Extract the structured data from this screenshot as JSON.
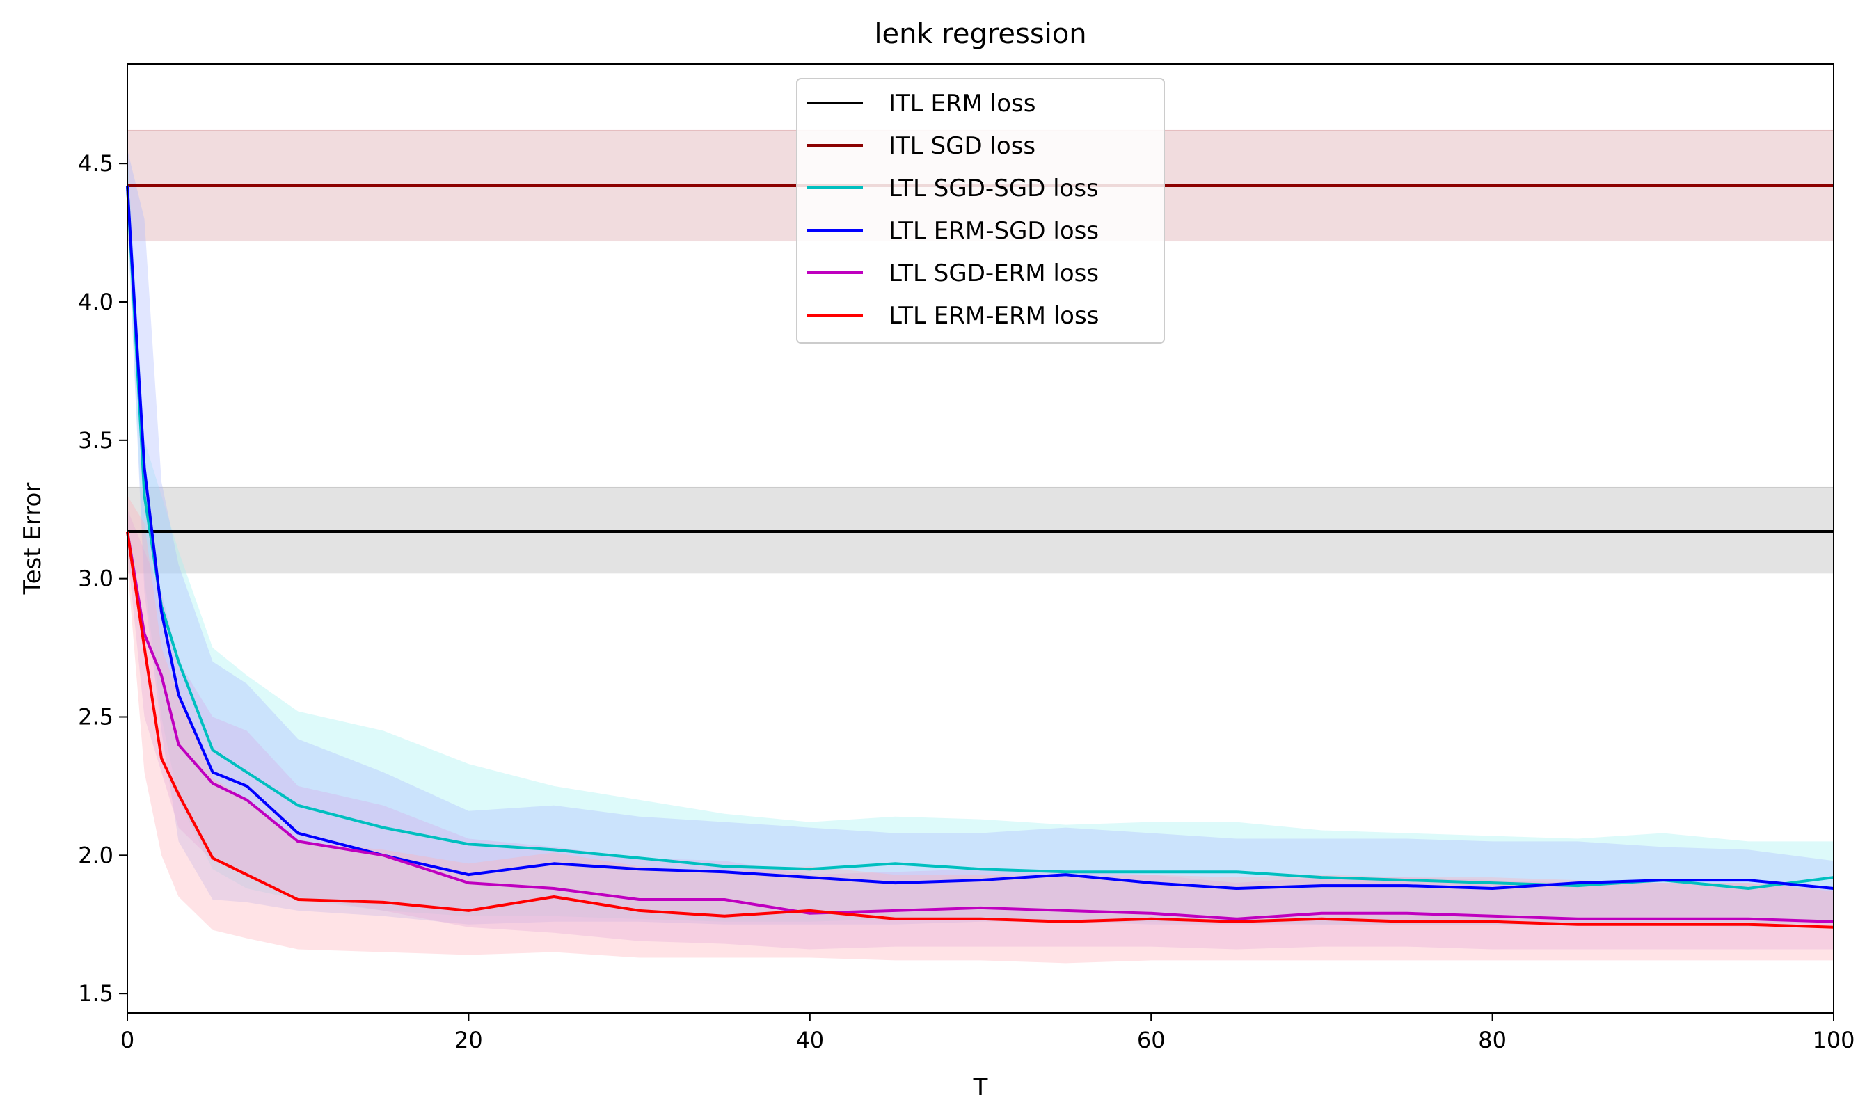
{
  "chart_data": {
    "type": "line",
    "title": "lenk regression",
    "xlabel": "T",
    "ylabel": "Test Error",
    "xlim": [
      0,
      100
    ],
    "ylim": [
      1.43,
      4.86
    ],
    "xticks": [
      0,
      20,
      40,
      60,
      80,
      100
    ],
    "yticks": [
      1.5,
      2.0,
      2.5,
      3.0,
      3.5,
      4.0,
      4.5
    ],
    "grid": false,
    "legend_position": "top-center",
    "horizontal_series": [
      {
        "name": "ITL ERM loss",
        "color": "#000000",
        "value": 3.17,
        "band": [
          3.02,
          3.33
        ],
        "band_color": "#b0b0b0"
      },
      {
        "name": "ITL SGD loss",
        "color": "#8b0000",
        "value": 4.42,
        "band": [
          4.22,
          4.62
        ],
        "band_color": "#d89ca0"
      }
    ],
    "series": [
      {
        "name": "LTL SGD-SGD loss",
        "color": "#00bfbf",
        "band_color": "#9ef0f0",
        "x": [
          0,
          1,
          2,
          3,
          5,
          7,
          10,
          15,
          20,
          25,
          30,
          35,
          40,
          45,
          50,
          55,
          60,
          65,
          70,
          75,
          80,
          85,
          90,
          95,
          100
        ],
        "values": [
          4.42,
          3.3,
          2.9,
          2.7,
          2.38,
          2.3,
          2.18,
          2.1,
          2.04,
          2.02,
          1.99,
          1.96,
          1.95,
          1.97,
          1.95,
          1.94,
          1.94,
          1.94,
          1.92,
          1.91,
          1.9,
          1.89,
          1.91,
          1.88,
          1.92
        ],
        "lower": [
          4.3,
          3.0,
          2.5,
          2.2,
          1.95,
          1.88,
          1.84,
          1.8,
          1.78,
          1.78,
          1.77,
          1.76,
          1.76,
          1.77,
          1.77,
          1.76,
          1.76,
          1.76,
          1.75,
          1.75,
          1.75,
          1.75,
          1.75,
          1.74,
          1.76
        ],
        "upper": [
          4.55,
          3.5,
          3.3,
          3.1,
          2.75,
          2.65,
          2.52,
          2.45,
          2.33,
          2.25,
          2.2,
          2.15,
          2.12,
          2.14,
          2.13,
          2.11,
          2.12,
          2.12,
          2.09,
          2.08,
          2.07,
          2.06,
          2.08,
          2.05,
          2.05
        ]
      },
      {
        "name": "LTL ERM-SGD loss",
        "color": "#0000ff",
        "band_color": "#a8b8ff",
        "x": [
          0,
          1,
          2,
          3,
          5,
          7,
          10,
          15,
          20,
          25,
          30,
          35,
          40,
          45,
          50,
          55,
          60,
          65,
          70,
          75,
          80,
          85,
          90,
          95,
          100
        ],
        "values": [
          4.42,
          3.4,
          2.88,
          2.58,
          2.3,
          2.25,
          2.08,
          2.0,
          1.93,
          1.97,
          1.95,
          1.94,
          1.92,
          1.9,
          1.91,
          1.93,
          1.9,
          1.88,
          1.89,
          1.89,
          1.88,
          1.9,
          1.91,
          1.91,
          1.88
        ],
        "lower": [
          4.3,
          2.95,
          2.45,
          2.05,
          1.84,
          1.83,
          1.8,
          1.78,
          1.75,
          1.76,
          1.76,
          1.75,
          1.75,
          1.75,
          1.76,
          1.76,
          1.75,
          1.75,
          1.75,
          1.75,
          1.75,
          1.75,
          1.76,
          1.76,
          1.75
        ],
        "upper": [
          4.55,
          4.3,
          3.35,
          3.05,
          2.7,
          2.62,
          2.42,
          2.3,
          2.16,
          2.18,
          2.14,
          2.12,
          2.1,
          2.08,
          2.08,
          2.1,
          2.08,
          2.06,
          2.06,
          2.06,
          2.05,
          2.05,
          2.03,
          2.02,
          1.98
        ]
      },
      {
        "name": "LTL SGD-ERM loss",
        "color": "#bf00bf",
        "band_color": "#d8a8e8",
        "x": [
          0,
          1,
          2,
          3,
          5,
          7,
          10,
          15,
          20,
          25,
          30,
          35,
          40,
          45,
          50,
          55,
          60,
          65,
          70,
          75,
          80,
          85,
          90,
          95,
          100
        ],
        "values": [
          3.17,
          2.8,
          2.65,
          2.4,
          2.26,
          2.2,
          2.05,
          2.0,
          1.9,
          1.88,
          1.84,
          1.84,
          1.79,
          1.8,
          1.81,
          1.8,
          1.79,
          1.77,
          1.79,
          1.79,
          1.78,
          1.77,
          1.77,
          1.77,
          1.76
        ],
        "lower": [
          3.1,
          2.5,
          2.3,
          2.1,
          1.98,
          1.93,
          1.85,
          1.8,
          1.74,
          1.72,
          1.69,
          1.68,
          1.66,
          1.67,
          1.67,
          1.67,
          1.67,
          1.66,
          1.67,
          1.67,
          1.66,
          1.66,
          1.66,
          1.66,
          1.66
        ],
        "upper": [
          3.25,
          3.1,
          2.95,
          2.7,
          2.5,
          2.45,
          2.25,
          2.18,
          2.06,
          2.03,
          1.99,
          1.98,
          1.93,
          1.94,
          1.95,
          1.94,
          1.93,
          1.9,
          1.92,
          1.92,
          1.91,
          1.9,
          1.9,
          1.9,
          1.88
        ]
      },
      {
        "name": "LTL ERM-ERM loss",
        "color": "#ff0000",
        "band_color": "#ffb0b8",
        "x": [
          0,
          1,
          2,
          3,
          5,
          7,
          10,
          15,
          20,
          25,
          30,
          35,
          40,
          45,
          50,
          55,
          60,
          65,
          70,
          75,
          80,
          85,
          90,
          95,
          100
        ],
        "values": [
          3.17,
          2.75,
          2.35,
          2.22,
          1.99,
          1.93,
          1.84,
          1.83,
          1.8,
          1.85,
          1.8,
          1.78,
          1.8,
          1.77,
          1.77,
          1.76,
          1.77,
          1.76,
          1.77,
          1.76,
          1.76,
          1.75,
          1.75,
          1.75,
          1.74
        ],
        "lower": [
          3.05,
          2.3,
          2.0,
          1.85,
          1.73,
          1.7,
          1.66,
          1.65,
          1.64,
          1.65,
          1.63,
          1.63,
          1.63,
          1.62,
          1.62,
          1.61,
          1.62,
          1.62,
          1.62,
          1.62,
          1.62,
          1.62,
          1.62,
          1.62,
          1.62
        ],
        "upper": [
          3.3,
          3.2,
          2.75,
          2.58,
          2.28,
          2.2,
          2.05,
          2.02,
          1.97,
          2.01,
          1.96,
          1.94,
          1.96,
          1.93,
          1.93,
          1.92,
          1.93,
          1.92,
          1.93,
          1.92,
          1.92,
          1.91,
          1.9,
          1.9,
          1.87
        ]
      }
    ],
    "legend": [
      "ITL ERM loss",
      "ITL SGD loss",
      "LTL SGD-SGD loss",
      "LTL ERM-SGD loss",
      "LTL SGD-ERM loss",
      "LTL ERM-ERM loss"
    ]
  }
}
